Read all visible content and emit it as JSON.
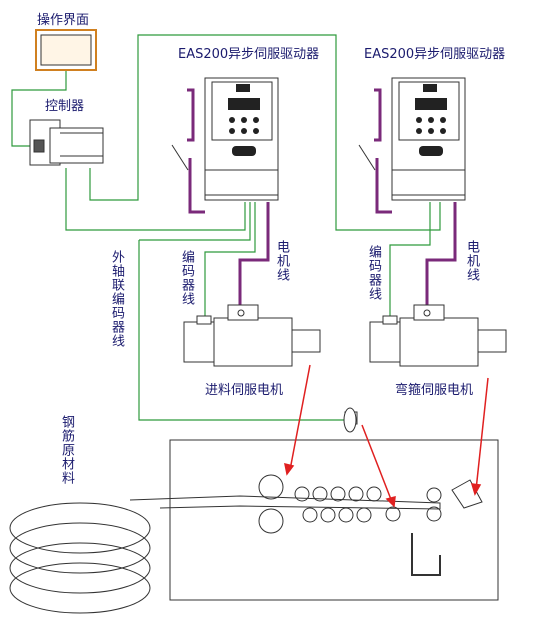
{
  "labels": {
    "operator_panel": "操作界面",
    "controller": "控制器",
    "drive_1": "EAS200异步伺服驱动器",
    "drive_2": "EAS200异步伺服驱动器",
    "encoder_cable_1": "编码器线",
    "motor_cable_1": "电机线",
    "encoder_cable_2": "编码器线",
    "motor_cable_2": "电机线",
    "external_encoder_cable": "外轴联编码器线",
    "feed_motor": "进料伺服电机",
    "bending_motor": "弯箍伺服电机",
    "raw_rebar": "钢筋原材料"
  }
}
